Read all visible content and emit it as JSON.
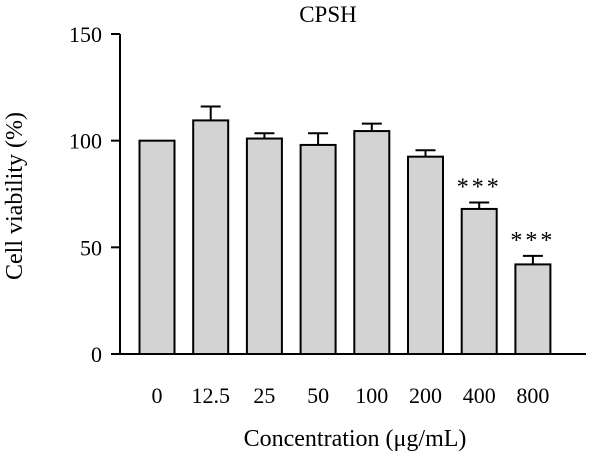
{
  "chart_data": {
    "type": "bar",
    "title": "CPSH",
    "xlabel": "Concentration (μg/mL)",
    "ylabel": "Cell viability (%)",
    "ylim": [
      0,
      150
    ],
    "yticks": [
      0,
      50,
      100,
      150
    ],
    "categories": [
      "0",
      "12.5",
      "25",
      "50",
      "100",
      "200",
      "400",
      "800"
    ],
    "values": [
      100,
      109.5,
      101,
      98,
      104.5,
      92.5,
      68,
      42
    ],
    "error": [
      0,
      6.5,
      2.5,
      5.5,
      3.5,
      3,
      3,
      4
    ],
    "significance": [
      "",
      "",
      "",
      "",
      "",
      "",
      "***",
      "***"
    ],
    "bar_color": "#d3d3d3",
    "grid": false,
    "legend": "none"
  }
}
